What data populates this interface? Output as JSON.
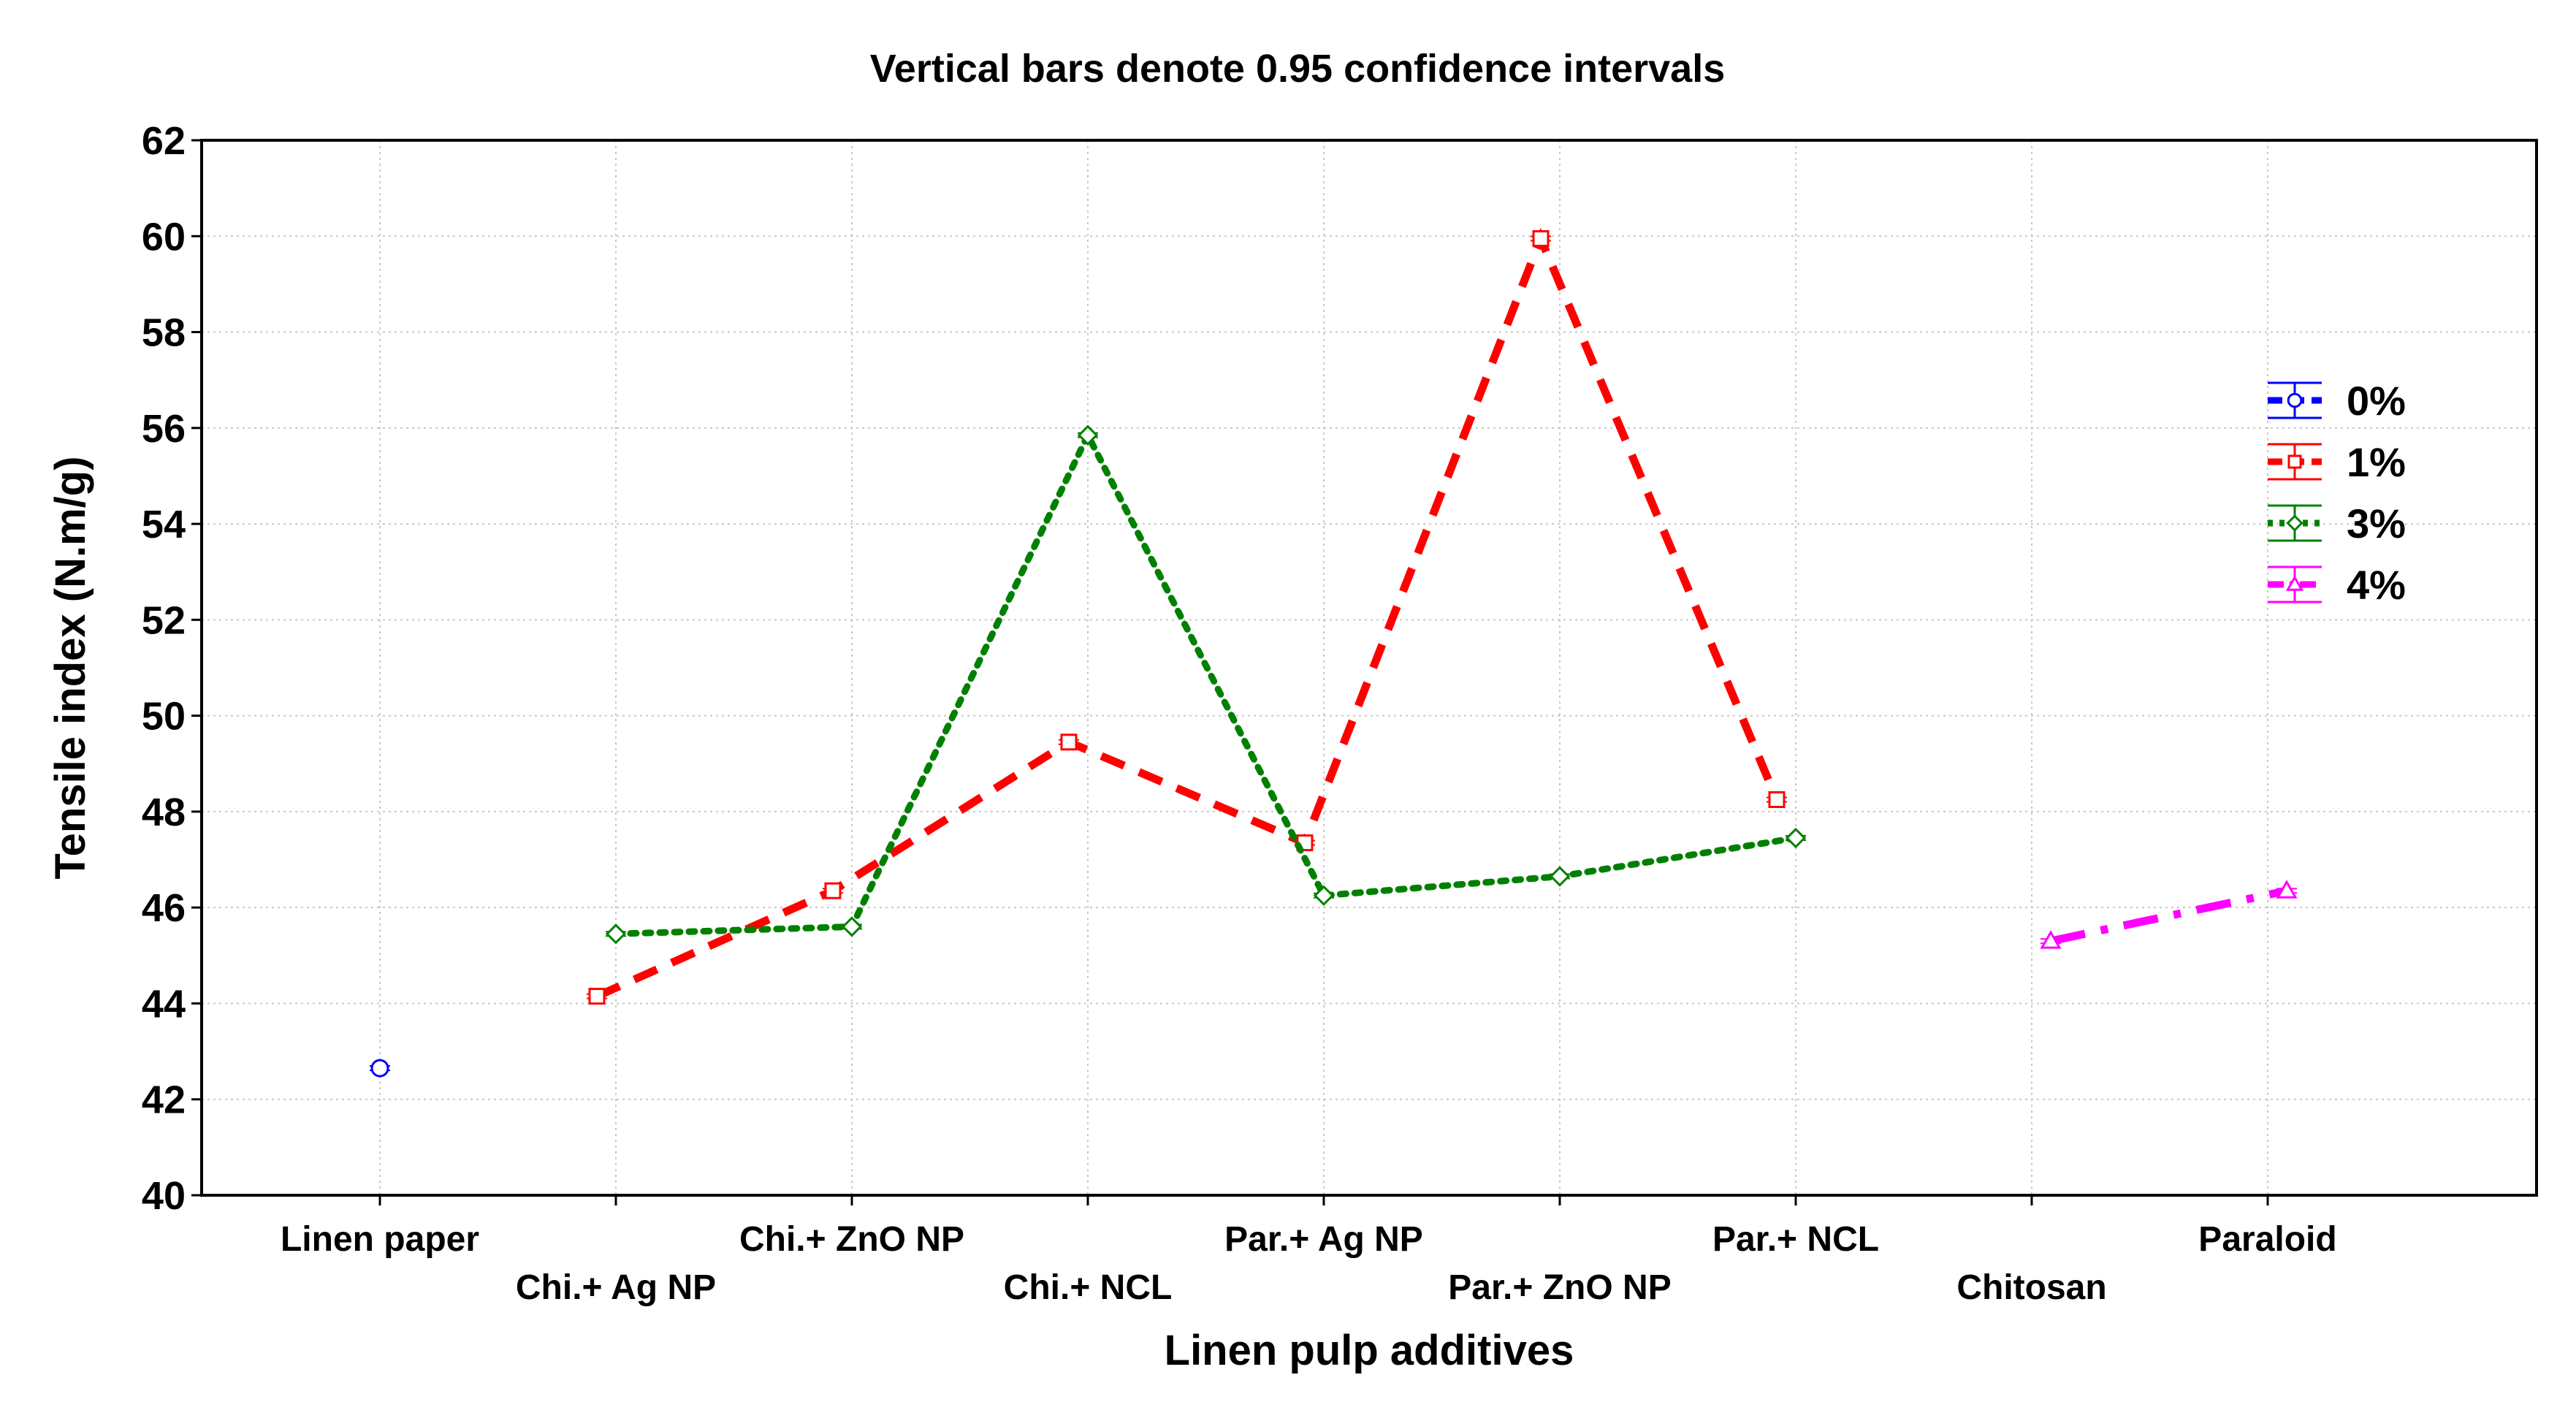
{
  "chart_data": {
    "type": "line",
    "title": "Vertical bars denote 0.95 confidence intervals",
    "xlabel": "Linen pulp additives",
    "ylabel": "Tensile index (N.m/g)",
    "ylim": [
      40,
      62
    ],
    "yticks": [
      40,
      42,
      44,
      46,
      48,
      50,
      52,
      54,
      56,
      58,
      60,
      62
    ],
    "grid": true,
    "legend_position": "right",
    "categories": [
      "Linen paper",
      "Chi.+ Ag NP",
      "Chi.+ ZnO NP",
      "Chi.+ NCL",
      "Par.+ Ag NP",
      "Par.+ ZnO NP",
      "Par.+ NCL",
      "Chitosan",
      "Paraloid"
    ],
    "series": [
      {
        "name": "0%",
        "color": "#0000ff",
        "marker": "circle",
        "line": "dash",
        "points": [
          {
            "category": "Linen paper",
            "value": 42.65
          }
        ]
      },
      {
        "name": "1%",
        "color": "#ff0000",
        "marker": "square",
        "line": "dash",
        "points": [
          {
            "category": "Chi.+ Ag NP",
            "value": 44.15
          },
          {
            "category": "Chi.+ ZnO NP",
            "value": 46.35
          },
          {
            "category": "Chi.+ NCL",
            "value": 49.45
          },
          {
            "category": "Par.+ Ag NP",
            "value": 47.35
          },
          {
            "category": "Par.+ ZnO NP",
            "value": 59.95
          },
          {
            "category": "Par.+ NCL",
            "value": 48.25
          }
        ]
      },
      {
        "name": "3%",
        "color": "#008000",
        "marker": "diamond",
        "line": "dot",
        "points": [
          {
            "category": "Chi.+ Ag NP",
            "value": 45.45
          },
          {
            "category": "Chi.+ ZnO NP",
            "value": 45.6
          },
          {
            "category": "Chi.+ NCL",
            "value": 55.85
          },
          {
            "category": "Par.+ Ag NP",
            "value": 46.25
          },
          {
            "category": "Par.+ ZnO NP",
            "value": 46.65
          },
          {
            "category": "Par.+ NCL",
            "value": 47.45
          }
        ]
      },
      {
        "name": "4%",
        "color": "#ff00ff",
        "marker": "triangle",
        "line": "dashdot",
        "points": [
          {
            "category": "Chitosan",
            "value": 45.3
          },
          {
            "category": "Paraloid",
            "value": 46.35
          }
        ]
      }
    ]
  }
}
